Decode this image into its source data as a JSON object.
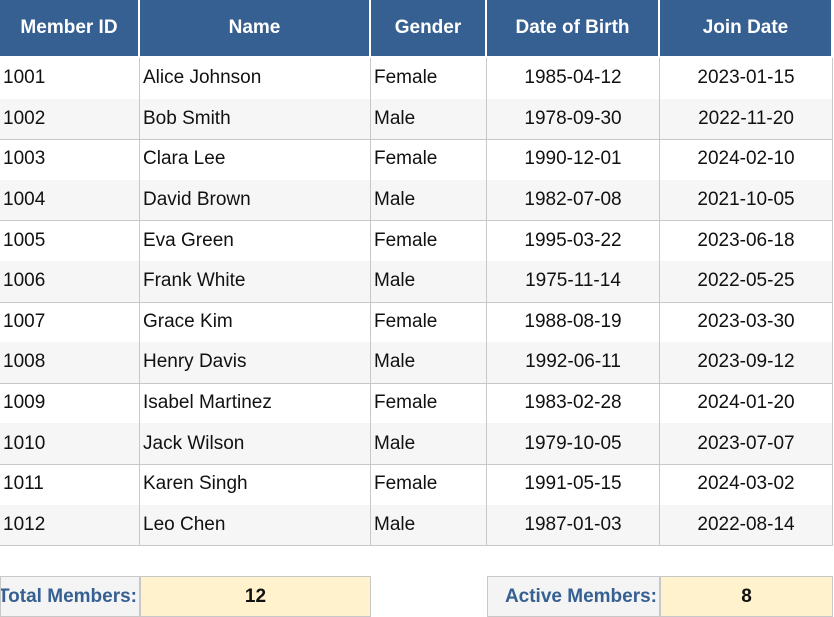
{
  "table": {
    "columns": [
      "Member ID",
      "Name",
      "Gender",
      "Date of Birth",
      "Join Date"
    ],
    "rows": [
      [
        1001,
        "Alice Johnson",
        "Female",
        "1985-04-12",
        "2023-01-15"
      ],
      [
        1002,
        "Bob Smith",
        "Male",
        "1978-09-30",
        "2022-11-20"
      ],
      [
        1003,
        "Clara Lee",
        "Female",
        "1990-12-01",
        "2024-02-10"
      ],
      [
        1004,
        "David Brown",
        "Male",
        "1982-07-08",
        "2021-10-05"
      ],
      [
        1005,
        "Eva Green",
        "Female",
        "1995-03-22",
        "2023-06-18"
      ],
      [
        1006,
        "Frank White",
        "Male",
        "1975-11-14",
        "2022-05-25"
      ],
      [
        1007,
        "Grace Kim",
        "Female",
        "1988-08-19",
        "2023-03-30"
      ],
      [
        1008,
        "Henry Davis",
        "Male",
        "1992-06-11",
        "2023-09-12"
      ],
      [
        1009,
        "Isabel Martinez",
        "Female",
        "1983-02-28",
        "2024-01-20"
      ],
      [
        1010,
        "Jack Wilson",
        "Male",
        "1979-10-05",
        "2023-07-07"
      ],
      [
        1011,
        "Karen Singh",
        "Female",
        "1991-05-15",
        "2024-03-02"
      ],
      [
        1012,
        "Leo Chen",
        "Male",
        "1987-01-03",
        "2022-08-14"
      ]
    ]
  },
  "summary": [
    {
      "label": "Total Members:",
      "value": 12
    },
    {
      "label": "Active Members:",
      "value": 8
    }
  ]
}
